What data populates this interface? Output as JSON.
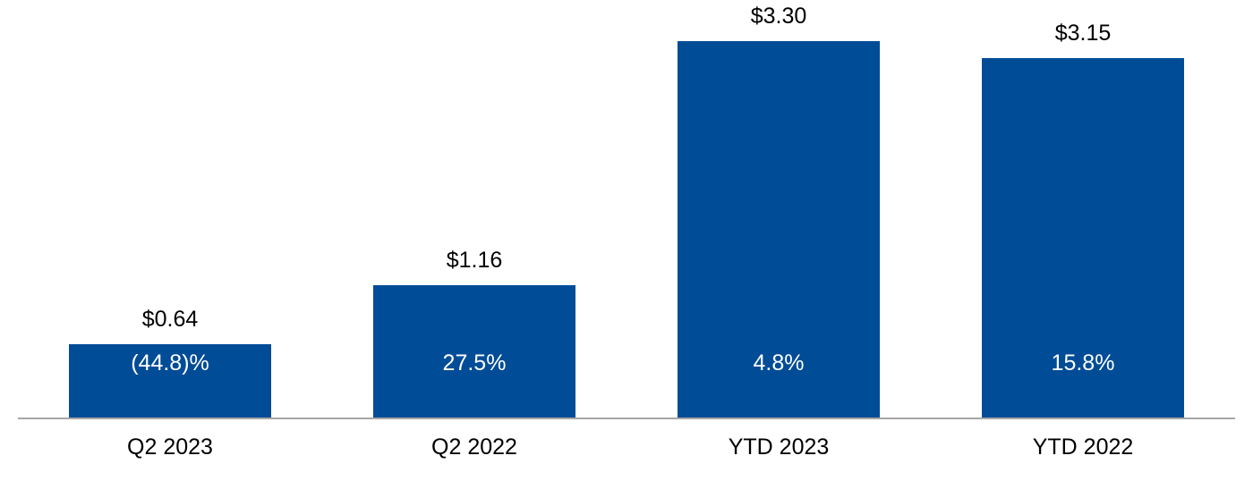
{
  "chart_data": {
    "type": "bar",
    "categories": [
      "Q2 2023",
      "Q2 2022",
      "YTD 2023",
      "YTD 2022"
    ],
    "values": [
      0.64,
      1.16,
      3.3,
      3.15
    ],
    "bar_value_labels": [
      "$0.64",
      "$1.16",
      "$3.30",
      "$3.15"
    ],
    "bar_inner_labels": [
      "(44.8)%",
      "27.5%",
      "4.8%",
      "15.8%"
    ],
    "title": "",
    "xlabel": "",
    "ylabel": "",
    "ylim": [
      0,
      3.3
    ],
    "grid": false,
    "legend": false,
    "bar_color": "#004C97",
    "value_label_color": "#000000",
    "inner_label_color": "#FFFFFF",
    "category_label_color": "#000000",
    "axis_line_color": "#A6A6A6",
    "background_color": "#FFFFFF"
  }
}
